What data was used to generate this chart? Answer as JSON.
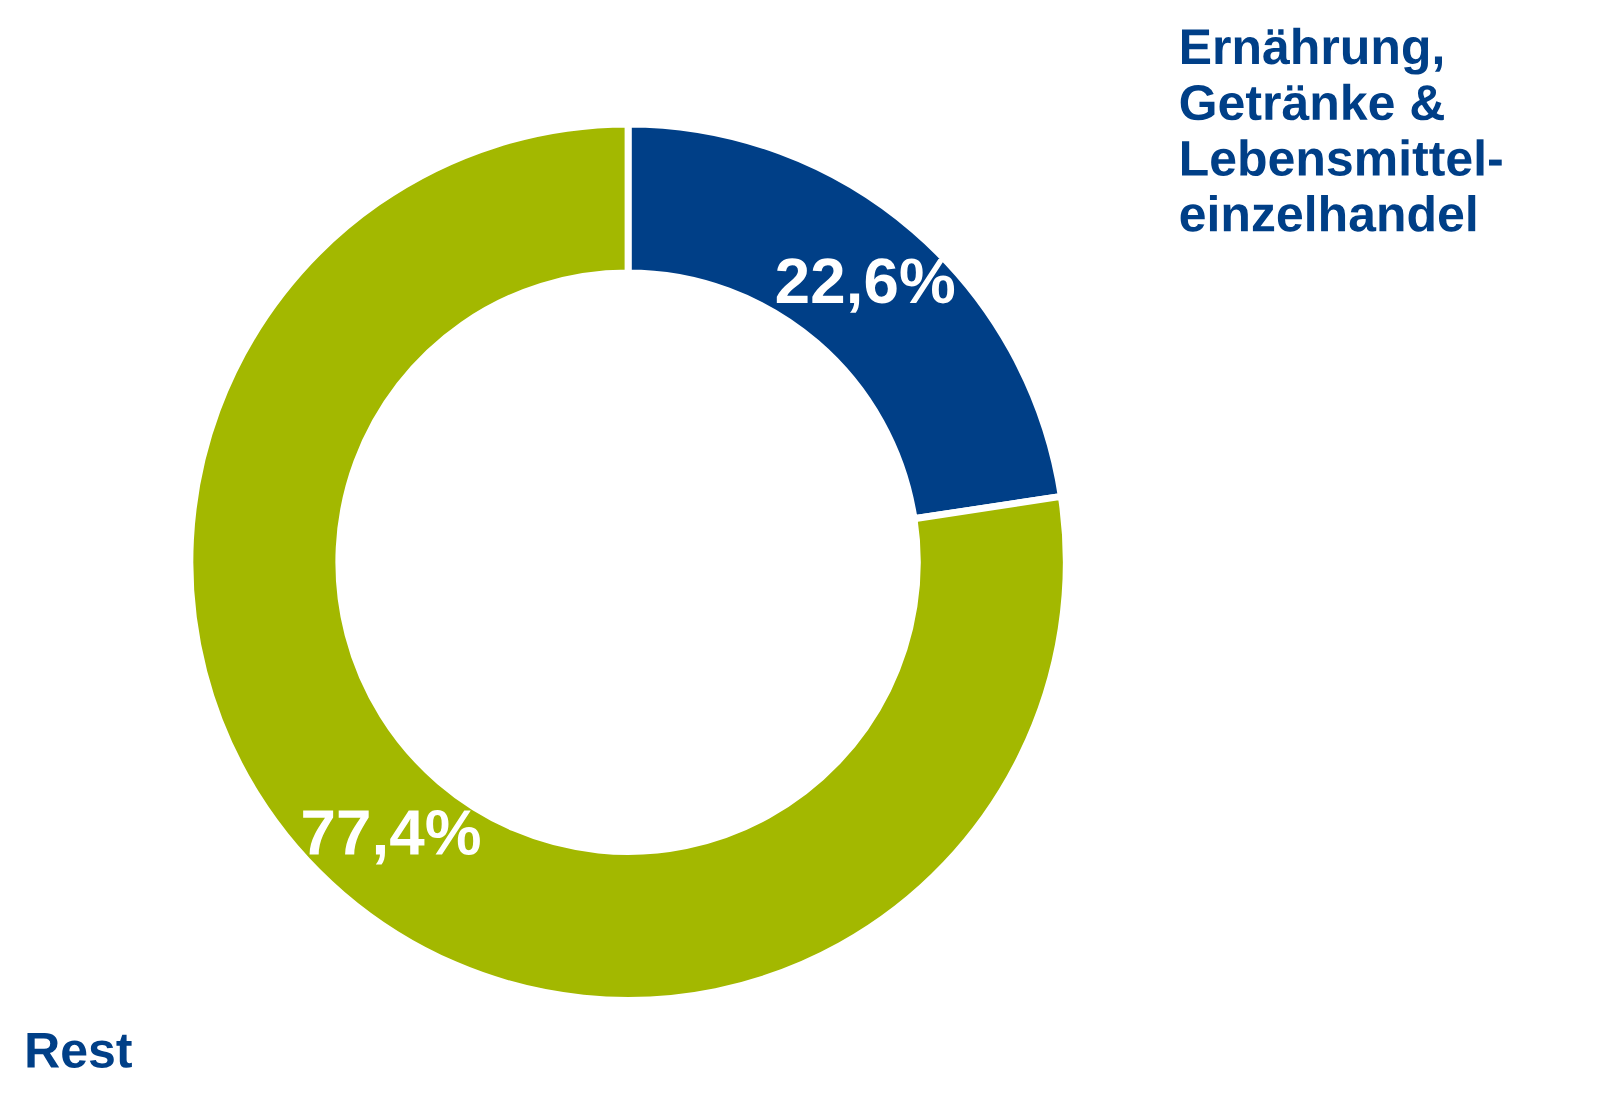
{
  "chart_data": {
    "type": "donut",
    "categories": [
      "Ernährung,\nGetränke &\nLebensmittel-\neinzelhandel",
      "Rest"
    ],
    "values": [
      22.6,
      77.4
    ],
    "colors": [
      "#003f87",
      "#a3b800"
    ],
    "value_labels": [
      "22,6%",
      "77,4%"
    ],
    "legend": false
  }
}
